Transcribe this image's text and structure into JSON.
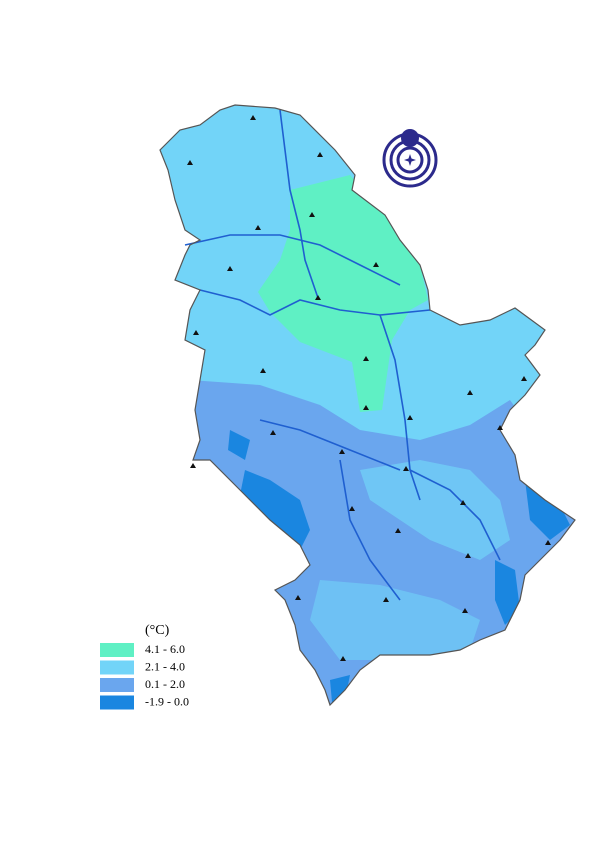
{
  "legend": {
    "title": "(°C)",
    "items": [
      {
        "label": "4.1 - 6.0",
        "color": "#5ff0c4"
      },
      {
        "label": "2.1 - 4.0",
        "color": "#72d4f8"
      },
      {
        "label": "0.1 - 2.0",
        "color": "#6aa6ee"
      },
      {
        "label": "-1.9 - 0.0",
        "color": "#1a86e0"
      }
    ]
  }
}
